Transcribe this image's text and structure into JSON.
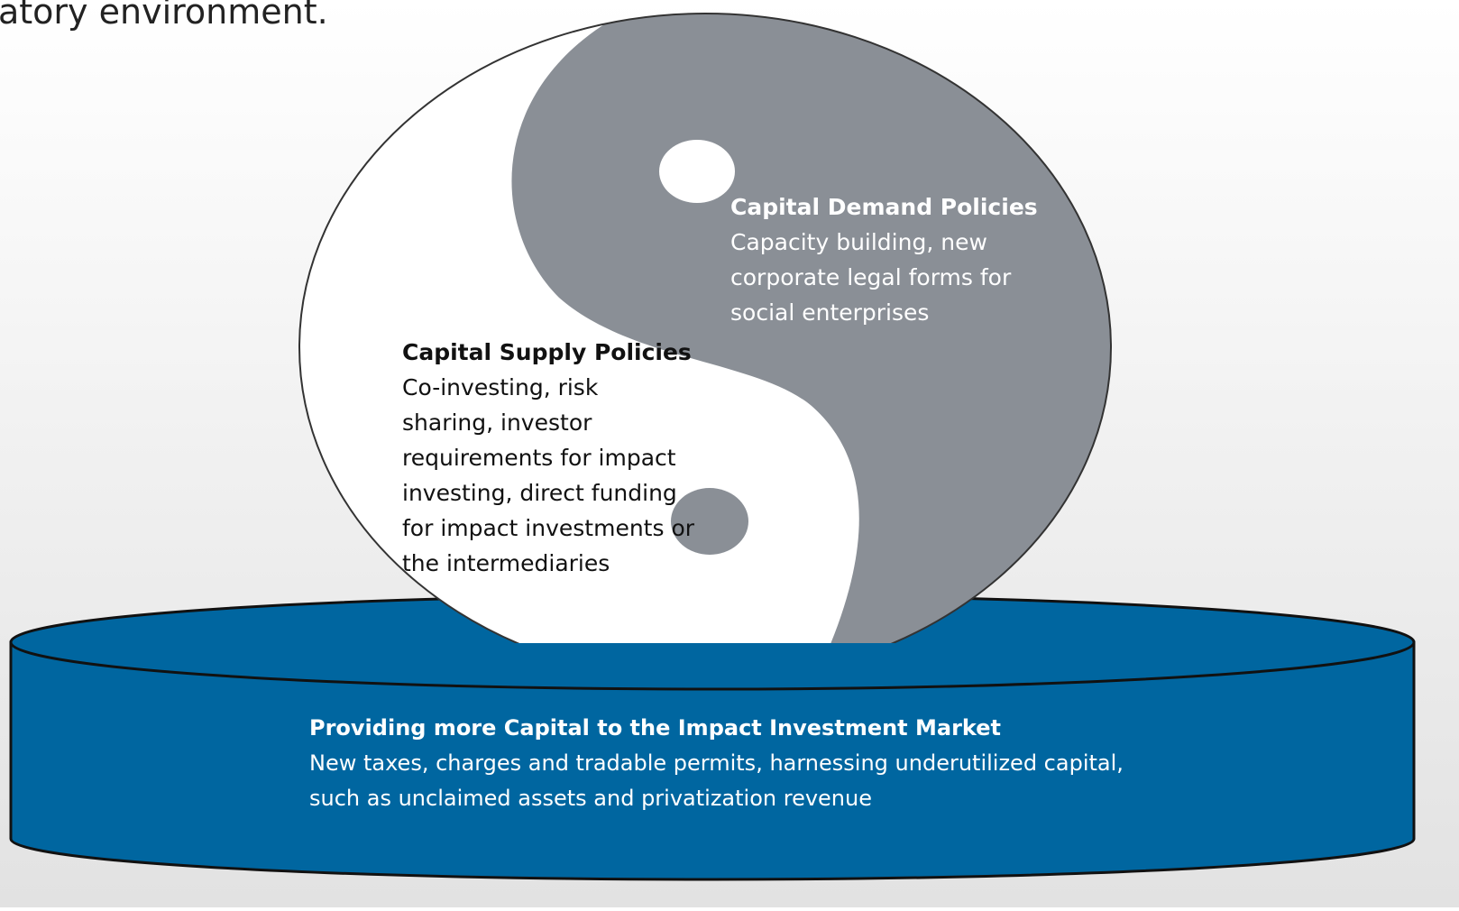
{
  "header": {
    "text": "atory environment."
  },
  "demand": {
    "title": "Capital Demand Policies",
    "lines": [
      "Capacity building, new",
      "corporate legal forms for",
      "social enterprises"
    ]
  },
  "supply": {
    "title": "Capital Supply Policies",
    "lines": [
      "Co-investing, risk",
      "sharing, investor",
      "requirements for impact",
      "investing, direct funding",
      "for impact investments or",
      "the intermediaries"
    ]
  },
  "base": {
    "title": "Providing more Capital to the Impact Investment Market",
    "lines": [
      "New taxes, charges and tradable permits, harnessing underutilized capital,",
      "such as unclaimed assets and privatization revenue"
    ]
  }
}
